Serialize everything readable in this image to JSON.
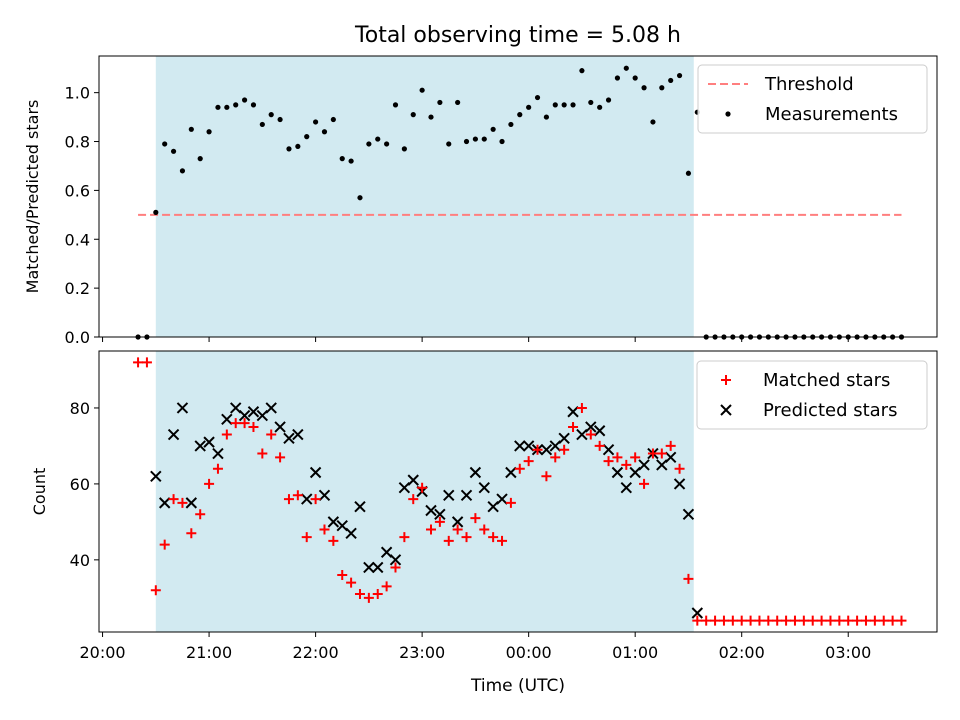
{
  "figure": {
    "title": "Total observing time = 5.08 h"
  },
  "chart_data": [
    {
      "type": "scatter",
      "panel": "top",
      "title": "Total observing time = 5.08 h",
      "xlabel": "",
      "ylabel": "Matched/Predicted stars",
      "ylim": [
        0,
        1.15
      ],
      "yticks": [
        0.0,
        0.2,
        0.4,
        0.6,
        0.8,
        1.0
      ],
      "ytick_labels": [
        "0.0",
        "0.2",
        "0.4",
        "0.6",
        "0.8",
        "1.0"
      ],
      "shaded_region": {
        "from": "20:30",
        "to": "01:33",
        "color": "#add8e6"
      },
      "legend_position": "top-right",
      "threshold": {
        "name": "Threshold",
        "value": 0.5,
        "from": "20:20",
        "to": "03:30",
        "color": "#ff7f7f"
      },
      "series": [
        {
          "name": "Measurements",
          "color": "#000000",
          "marker": "dot",
          "x": [
            "20:20",
            "20:25",
            "20:30",
            "20:35",
            "20:40",
            "20:45",
            "20:50",
            "20:55",
            "21:00",
            "21:05",
            "21:10",
            "21:15",
            "21:20",
            "21:25",
            "21:30",
            "21:35",
            "21:40",
            "21:45",
            "21:50",
            "21:55",
            "22:00",
            "22:05",
            "22:10",
            "22:15",
            "22:20",
            "22:25",
            "22:30",
            "22:35",
            "22:40",
            "22:45",
            "22:50",
            "22:55",
            "23:00",
            "23:05",
            "23:10",
            "23:15",
            "23:20",
            "23:25",
            "23:30",
            "23:35",
            "23:40",
            "23:45",
            "23:50",
            "23:55",
            "00:00",
            "00:05",
            "00:10",
            "00:15",
            "00:20",
            "00:25",
            "00:30",
            "00:35",
            "00:40",
            "00:45",
            "00:50",
            "00:55",
            "01:00",
            "01:05",
            "01:10",
            "01:15",
            "01:20",
            "01:25",
            "01:30",
            "01:35",
            "01:40",
            "01:45",
            "01:50",
            "01:55",
            "02:00",
            "02:05",
            "02:10",
            "02:15",
            "02:20",
            "02:25",
            "02:30",
            "02:35",
            "02:40",
            "02:45",
            "02:50",
            "02:55",
            "03:00",
            "03:05",
            "03:10",
            "03:15",
            "03:20",
            "03:25",
            "03:30"
          ],
          "y": [
            0,
            0,
            0.51,
            0.79,
            0.76,
            0.68,
            0.85,
            0.73,
            0.84,
            0.94,
            0.94,
            0.95,
            0.97,
            0.95,
            0.87,
            0.91,
            0.89,
            0.77,
            0.78,
            0.82,
            0.88,
            0.84,
            0.89,
            0.73,
            0.72,
            0.57,
            0.79,
            0.81,
            0.79,
            0.95,
            0.77,
            0.91,
            1.01,
            0.9,
            0.96,
            0.79,
            0.96,
            0.8,
            0.81,
            0.81,
            0.85,
            0.8,
            0.87,
            0.91,
            0.94,
            0.98,
            0.9,
            0.95,
            0.95,
            0.95,
            1.09,
            0.96,
            0.94,
            0.97,
            1.06,
            1.1,
            1.06,
            1.02,
            0.88,
            1.02,
            1.05,
            1.07,
            0.67,
            0.92,
            0,
            0,
            0,
            0,
            0,
            0,
            0,
            0,
            0,
            0,
            0,
            0,
            0,
            0,
            0,
            0,
            0,
            0,
            0,
            0,
            0,
            0,
            0
          ]
        }
      ]
    },
    {
      "type": "scatter",
      "panel": "bottom",
      "xlabel": "Time (UTC)",
      "ylabel": "Count",
      "ylim": [
        21,
        95
      ],
      "yticks": [
        40,
        60,
        80
      ],
      "ytick_labels": [
        "40",
        "60",
        "80"
      ],
      "xlim": [
        "19:58",
        "03:50"
      ],
      "xticks": [
        "20:00",
        "21:00",
        "22:00",
        "23:00",
        "00:00",
        "01:00",
        "02:00",
        "03:00"
      ],
      "xtick_labels": [
        "20:00",
        "21:00",
        "22:00",
        "23:00",
        "00:00",
        "01:00",
        "02:00",
        "03:00"
      ],
      "shaded_region": {
        "from": "20:30",
        "to": "01:33",
        "color": "#add8e6"
      },
      "legend_position": "top-right",
      "series": [
        {
          "name": "Matched stars",
          "color": "#ff0000",
          "marker": "plus",
          "x": [
            "20:20",
            "20:25",
            "20:30",
            "20:35",
            "20:40",
            "20:45",
            "20:50",
            "20:55",
            "21:00",
            "21:05",
            "21:10",
            "21:15",
            "21:20",
            "21:25",
            "21:30",
            "21:35",
            "21:40",
            "21:45",
            "21:50",
            "21:55",
            "22:00",
            "22:05",
            "22:10",
            "22:15",
            "22:20",
            "22:25",
            "22:30",
            "22:35",
            "22:40",
            "22:45",
            "22:50",
            "22:55",
            "23:00",
            "23:05",
            "23:10",
            "23:15",
            "23:20",
            "23:25",
            "23:30",
            "23:35",
            "23:40",
            "23:45",
            "23:50",
            "23:55",
            "00:00",
            "00:05",
            "00:10",
            "00:15",
            "00:20",
            "00:25",
            "00:30",
            "00:35",
            "00:40",
            "00:45",
            "00:50",
            "00:55",
            "01:00",
            "01:05",
            "01:10",
            "01:15",
            "01:20",
            "01:25",
            "01:30",
            "01:35",
            "01:40",
            "01:45",
            "01:50",
            "01:55",
            "02:00",
            "02:05",
            "02:10",
            "02:15",
            "02:20",
            "02:25",
            "02:30",
            "02:35",
            "02:40",
            "02:45",
            "02:50",
            "02:55",
            "03:00",
            "03:05",
            "03:10",
            "03:15",
            "03:20",
            "03:25",
            "03:30"
          ],
          "y": [
            92,
            92,
            32,
            44,
            56,
            55,
            47,
            52,
            60,
            64,
            73,
            76,
            76,
            75,
            68,
            73,
            67,
            56,
            57,
            46,
            56,
            48,
            45,
            36,
            34,
            31,
            30,
            31,
            33,
            38,
            46,
            56,
            59,
            48,
            50,
            45,
            48,
            46,
            51,
            48,
            46,
            45,
            55,
            64,
            66,
            69,
            62,
            67,
            69,
            75,
            80,
            73,
            70,
            66,
            67,
            65,
            67,
            60,
            68,
            68,
            70,
            64,
            35,
            24,
            24,
            24,
            24,
            24,
            24,
            24,
            24,
            24,
            24,
            24,
            24,
            24,
            24,
            24,
            24,
            24,
            24,
            24,
            24,
            24,
            24,
            24,
            24
          ]
        },
        {
          "name": "Predicted stars",
          "color": "#000000",
          "marker": "x",
          "x": [
            "20:30",
            "20:35",
            "20:40",
            "20:45",
            "20:50",
            "20:55",
            "21:00",
            "21:05",
            "21:10",
            "21:15",
            "21:20",
            "21:25",
            "21:30",
            "21:35",
            "21:40",
            "21:45",
            "21:50",
            "21:55",
            "22:00",
            "22:05",
            "22:10",
            "22:15",
            "22:20",
            "22:25",
            "22:30",
            "22:35",
            "22:40",
            "22:45",
            "22:50",
            "22:55",
            "23:00",
            "23:05",
            "23:10",
            "23:15",
            "23:20",
            "23:25",
            "23:30",
            "23:35",
            "23:40",
            "23:45",
            "23:50",
            "23:55",
            "00:00",
            "00:05",
            "00:10",
            "00:15",
            "00:20",
            "00:25",
            "00:30",
            "00:35",
            "00:40",
            "00:45",
            "00:50",
            "00:55",
            "01:00",
            "01:05",
            "01:10",
            "01:15",
            "01:20",
            "01:25",
            "01:30",
            "01:35"
          ],
          "y": [
            62,
            55,
            73,
            80,
            55,
            70,
            71,
            68,
            77,
            80,
            78,
            79,
            78,
            80,
            75,
            72,
            73,
            56,
            63,
            57,
            50,
            49,
            47,
            54,
            38,
            38,
            42,
            40,
            59,
            61,
            58,
            53,
            52,
            57,
            50,
            57,
            63,
            59,
            54,
            56,
            63,
            70,
            70,
            69,
            69,
            70,
            72,
            79,
            73,
            75,
            74,
            69,
            63,
            59,
            63,
            65,
            68,
            65,
            67,
            60,
            52,
            26
          ]
        }
      ]
    }
  ]
}
